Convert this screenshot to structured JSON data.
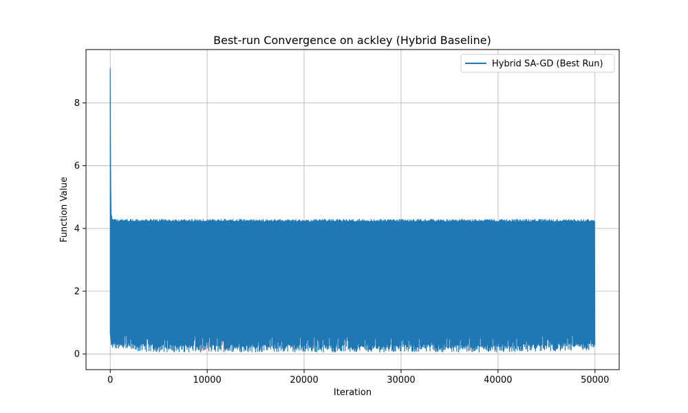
{
  "chart_data": {
    "type": "line",
    "title": "Best-run Convergence on ackley (Hybrid Baseline)",
    "xlabel": "Iteration",
    "ylabel": "Function Value",
    "xlim": [
      -2500,
      52500
    ],
    "ylim": [
      -0.5,
      9.7
    ],
    "xticks": [
      0,
      10000,
      20000,
      30000,
      40000,
      50000
    ],
    "xtick_labels": [
      "0",
      "10000",
      "20000",
      "30000",
      "40000",
      "50000"
    ],
    "yticks": [
      0,
      2,
      4,
      6,
      8
    ],
    "ytick_labels": [
      "0",
      "2",
      "4",
      "6",
      "8"
    ],
    "grid": true,
    "legend_position": "top-right",
    "series": [
      {
        "name": "Hybrid SA-GD (Best Run)",
        "color": "#1f77b4",
        "description_points": {
          "x": [
            0,
            20,
            40,
            60,
            80,
            100,
            150,
            200,
            300,
            500,
            1000,
            5000,
            10000,
            20000,
            30000,
            40000,
            50000
          ],
          "y_upper": [
            9.2,
            7.5,
            6.2,
            5.3,
            4.8,
            4.5,
            4.4,
            4.3,
            4.3,
            4.3,
            4.3,
            4.3,
            4.3,
            4.3,
            4.3,
            4.3,
            4.3
          ],
          "y_lower": [
            0.5,
            0.5,
            0.45,
            0.4,
            0.35,
            0.3,
            0.25,
            0.2,
            0.2,
            0.15,
            0.1,
            0.05,
            0.05,
            0.05,
            0.05,
            0.05,
            0.1
          ]
        }
      }
    ]
  }
}
